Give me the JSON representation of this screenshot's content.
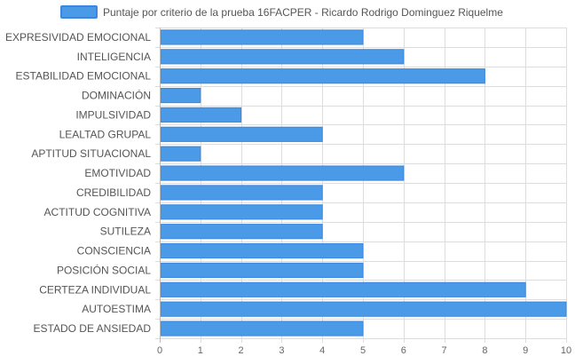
{
  "colors": {
    "bar_fill": "#4a9ae8",
    "bar_stroke": "#3b87e0",
    "grid": "#dddddd",
    "axis": "#bbbbbb",
    "text": "#555555"
  },
  "chart_data": {
    "type": "bar",
    "orientation": "horizontal",
    "categories": [
      "EXPRESIVIDAD EMOCIONAL",
      "INTELIGENCIA",
      "ESTABILIDAD EMOCIONAL",
      "DOMINACIÓN",
      "IMPULSIVIDAD",
      "LEALTAD GRUPAL",
      "APTITUD SITUACIONAL",
      "EMOTIVIDAD",
      "CREDIBILIDAD",
      "ACTITUD COGNITIVA",
      "SUTILEZA",
      "CONSCIENCIA",
      "POSICIÓN SOCIAL",
      "CERTEZA INDIVIDUAL",
      "AUTOESTIMA",
      "ESTADO DE ANSIEDAD"
    ],
    "series": [
      {
        "name": "Puntaje por criterio de la prueba 16FACPER - Ricardo Rodrigo Dominguez Riquelme",
        "values": [
          5,
          6,
          8,
          1,
          2,
          4,
          1,
          6,
          4,
          4,
          4,
          5,
          5,
          9,
          10,
          5
        ]
      }
    ],
    "xlim": [
      0,
      10
    ],
    "x_ticks": [
      "0",
      "1",
      "2",
      "3",
      "4",
      "5",
      "6",
      "7",
      "8",
      "9",
      "10"
    ],
    "grid": true,
    "legend_position": "top-center",
    "title": "",
    "xlabel": "",
    "ylabel": ""
  }
}
